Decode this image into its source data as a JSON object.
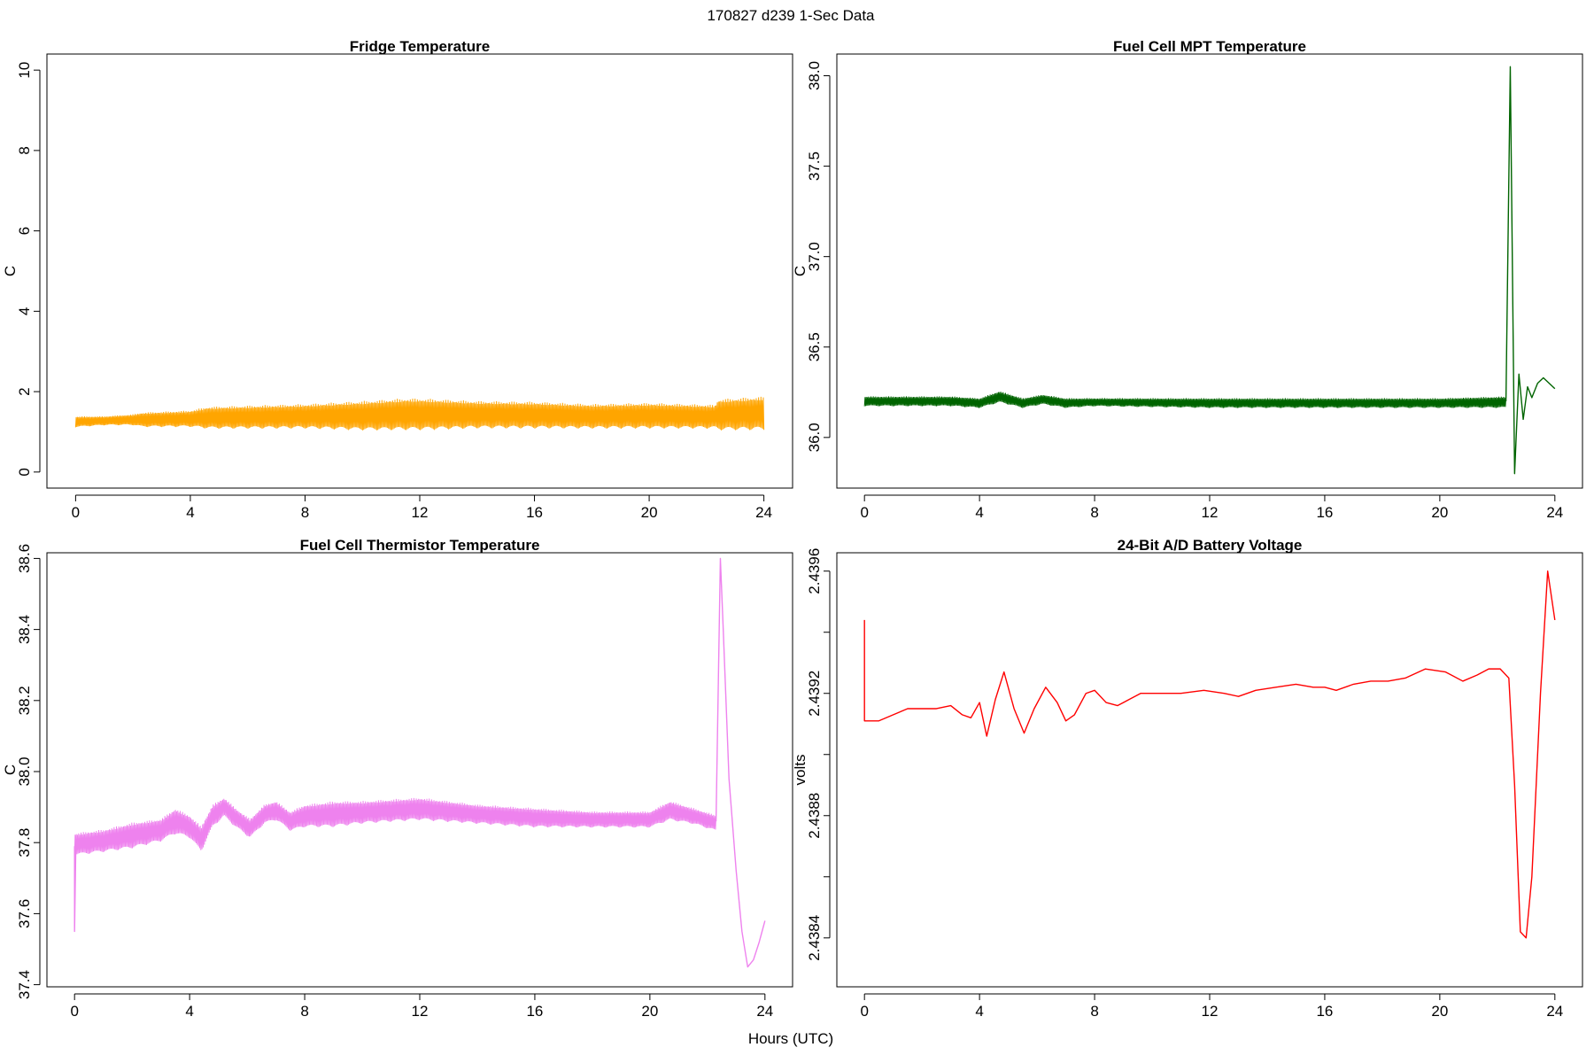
{
  "figure": {
    "suptitle": "170827   d239   1-Sec Data",
    "xlabel": "Hours (UTC)"
  },
  "chart_data": [
    {
      "type": "line",
      "title": "Fridge Temperature",
      "xlabel": "",
      "ylabel": "C",
      "color": "#FFA500",
      "xlim": [
        -1.0,
        25.0
      ],
      "ylim": [
        -0.4,
        10.4
      ],
      "xticks": [
        0,
        4,
        8,
        12,
        16,
        20,
        24
      ],
      "yticks": [
        0,
        2,
        4,
        6,
        8,
        10
      ],
      "ytick_labels": [
        "0",
        "2",
        "4",
        "6",
        "8",
        "10"
      ],
      "series": [
        {
          "band": {
            "x": [
              0,
              1,
              2,
              2.3,
              4,
              4.6,
              6,
              8,
              10,
              11.5,
              12,
              14,
              16,
              18,
              20,
              22.3,
              22.4,
              24
            ],
            "low": [
              1.1,
              1.15,
              1.15,
              1.1,
              1.1,
              1.05,
              1.05,
              1.05,
              1.0,
              1.0,
              1.0,
              1.05,
              1.05,
              1.05,
              1.05,
              1.05,
              1.0,
              1.0
            ],
            "high": [
              1.4,
              1.4,
              1.45,
              1.5,
              1.55,
              1.65,
              1.68,
              1.72,
              1.8,
              1.87,
              1.87,
              1.8,
              1.78,
              1.72,
              1.75,
              1.7,
              1.85,
              1.92
            ]
          }
        }
      ]
    },
    {
      "type": "line",
      "title": "Fuel Cell MPT Temperature",
      "xlabel": "",
      "ylabel": "C",
      "color": "#006400",
      "xlim": [
        -0.96,
        24.96
      ],
      "ylim": [
        35.72,
        38.12
      ],
      "xticks": [
        0,
        4,
        8,
        12,
        16,
        20,
        24
      ],
      "yticks": [
        36.0,
        36.5,
        37.0,
        37.5,
        38.0
      ],
      "ytick_labels": [
        "36.0",
        "36.5",
        "37.0",
        "37.5",
        "38.0"
      ],
      "series": [
        {
          "band": {
            "x": [
              0,
              3,
              4,
              4.7,
              5.5,
              6.2,
              7,
              8,
              12,
              16,
              20,
              22.3
            ],
            "low": [
              36.17,
              36.17,
              36.16,
              36.19,
              36.16,
              36.18,
              36.16,
              36.17,
              36.16,
              36.16,
              36.16,
              36.16
            ],
            "high": [
              36.23,
              36.23,
              36.22,
              36.26,
              36.22,
              36.24,
              36.22,
              36.22,
              36.22,
              36.22,
              36.22,
              36.23
            ]
          },
          "x": [
            22.3,
            22.45,
            22.6,
            22.75,
            22.9,
            23.05,
            23.2,
            23.4,
            23.6,
            23.8,
            24.0
          ],
          "y": [
            36.2,
            38.05,
            35.8,
            36.35,
            36.1,
            36.28,
            36.22,
            36.3,
            36.33,
            36.3,
            36.27
          ]
        }
      ]
    },
    {
      "type": "line",
      "title": "Fuel Cell Thermistor Temperature",
      "xlabel": "",
      "ylabel": "C",
      "color": "#EE82EE",
      "xlim": [
        -0.96,
        24.96
      ],
      "ylim": [
        37.394,
        38.616
      ],
      "xticks": [
        0,
        4,
        8,
        12,
        16,
        20,
        24
      ],
      "yticks": [
        37.4,
        37.6,
        37.8,
        38.0,
        38.2,
        38.4,
        38.6
      ],
      "ytick_labels": [
        "37.4",
        "37.6",
        "37.8",
        "38.0",
        "38.2",
        "38.4",
        "38.6"
      ],
      "series": [
        {
          "band": {
            "x": [
              0,
              1,
              2,
              3,
              3.5,
              4,
              4.4,
              4.8,
              5.2,
              5.6,
              6.1,
              6.6,
              7.0,
              7.5,
              8,
              9,
              10,
              12,
              14,
              16,
              18,
              20,
              20.7,
              21.5,
              22.3
            ],
            "low": [
              37.76,
              37.77,
              37.78,
              37.8,
              37.82,
              37.81,
              37.77,
              37.84,
              37.87,
              37.84,
              37.81,
              37.85,
              37.86,
              37.83,
              37.84,
              37.84,
              37.85,
              37.86,
              37.85,
              37.84,
              37.84,
              37.84,
              37.86,
              37.85,
              37.83
            ],
            "high": [
              37.83,
              37.84,
              37.86,
              37.87,
              37.9,
              37.88,
              37.85,
              37.91,
              37.93,
              37.9,
              37.87,
              37.91,
              37.92,
              37.89,
              37.91,
              37.92,
              37.92,
              37.93,
              37.91,
              37.9,
              37.89,
              37.89,
              37.92,
              37.9,
              37.88
            ]
          },
          "x": [
            22.3,
            22.45,
            22.55,
            22.75,
            23.0,
            23.2,
            23.4,
            23.6,
            23.8,
            24.0
          ],
          "y": [
            37.86,
            38.6,
            38.4,
            37.98,
            37.72,
            37.55,
            37.45,
            37.47,
            37.52,
            37.58
          ]
        },
        {
          "x": [
            0,
            0,
            0.05
          ],
          "y": [
            37.79,
            37.55,
            37.82
          ]
        }
      ]
    },
    {
      "type": "line",
      "title": "24-Bit A/D Battery Voltage",
      "xlabel": "",
      "ylabel": "volts",
      "color": "#FF0000",
      "xlim": [
        -0.96,
        24.96
      ],
      "ylim": [
        2.43824,
        2.43966
      ],
      "xticks": [
        0,
        4,
        8,
        12,
        16,
        20,
        24
      ],
      "yticks": [
        2.4384,
        2.4386,
        2.4388,
        2.439,
        2.4392,
        2.4394,
        2.4396
      ],
      "ytick_labels": [
        "2.4384",
        "",
        "2.4388",
        "",
        "2.4392",
        "",
        "2.4396"
      ],
      "series": [
        {
          "x": [
            0,
            0,
            0.1,
            0.5,
            1.0,
            1.5,
            2.0,
            2.5,
            3.0,
            3.4,
            3.7,
            4.0,
            4.25,
            4.55,
            4.85,
            5.2,
            5.55,
            5.9,
            6.3,
            6.7,
            7.0,
            7.3,
            7.7,
            8.0,
            8.4,
            8.8,
            9.2,
            9.6,
            10.0,
            11.0,
            11.8,
            12.5,
            13.0,
            13.6,
            14.3,
            15.0,
            15.6,
            16.0,
            16.4,
            17.0,
            17.6,
            18.2,
            18.8,
            19.5,
            20.2,
            20.8,
            21.3,
            21.7,
            22.1,
            22.4,
            22.6,
            22.8,
            23.0,
            23.2,
            23.5,
            23.75,
            24.0
          ],
          "y": [
            2.43944,
            2.43911,
            2.43911,
            2.43911,
            2.43913,
            2.43915,
            2.43915,
            2.43915,
            2.43916,
            2.43913,
            2.43912,
            2.43917,
            2.43906,
            2.43918,
            2.43927,
            2.43915,
            2.43907,
            2.43915,
            2.43922,
            2.43917,
            2.43911,
            2.43913,
            2.4392,
            2.43921,
            2.43917,
            2.43916,
            2.43918,
            2.4392,
            2.4392,
            2.4392,
            2.43921,
            2.4392,
            2.43919,
            2.43921,
            2.43922,
            2.43923,
            2.43922,
            2.43922,
            2.43921,
            2.43923,
            2.43924,
            2.43924,
            2.43925,
            2.43928,
            2.43927,
            2.43924,
            2.43926,
            2.43928,
            2.43928,
            2.43925,
            2.4389,
            2.43842,
            2.4384,
            2.4386,
            2.4392,
            2.4396,
            2.43944
          ]
        }
      ]
    }
  ]
}
